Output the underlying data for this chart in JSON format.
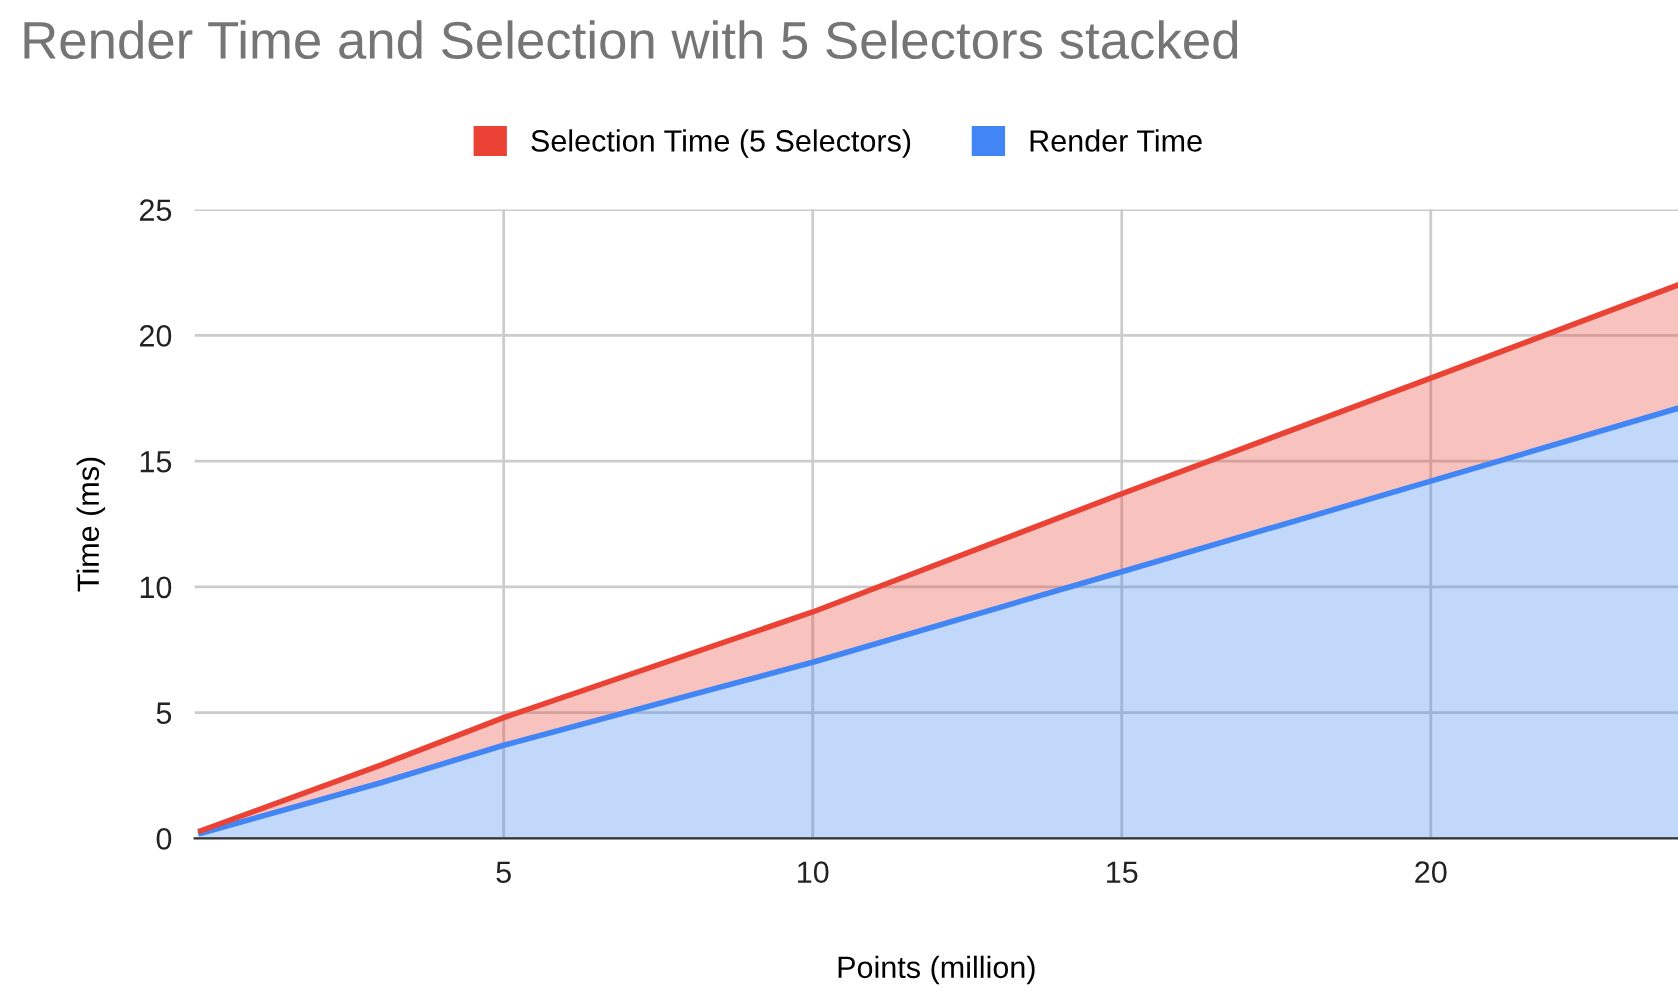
{
  "chart_data": {
    "type": "area",
    "stacked": true,
    "title": "Render Time and Selection with 5 Selectors stacked",
    "xlabel": "Points (million)",
    "ylabel": "Time (ms)",
    "x": [
      0.1,
      3,
      5,
      10,
      15,
      20,
      24
    ],
    "series": [
      {
        "name": "Render Time",
        "color": "#4285f4",
        "values": [
          0.2,
          2.2,
          3.7,
          7.0,
          10.6,
          14.2,
          17.1
        ]
      },
      {
        "name": "Selection Time (5 Selectors)",
        "color": "#ea4335",
        "values": [
          0.1,
          0.7,
          1.1,
          2.0,
          3.1,
          4.1,
          4.9
        ]
      }
    ],
    "xlim": [
      0,
      24
    ],
    "xticks": [
      5,
      10,
      15,
      20
    ],
    "ylim": [
      0,
      25
    ],
    "yticks": [
      0,
      5,
      10,
      15,
      20,
      25
    ],
    "grid": true,
    "legend": "top"
  }
}
